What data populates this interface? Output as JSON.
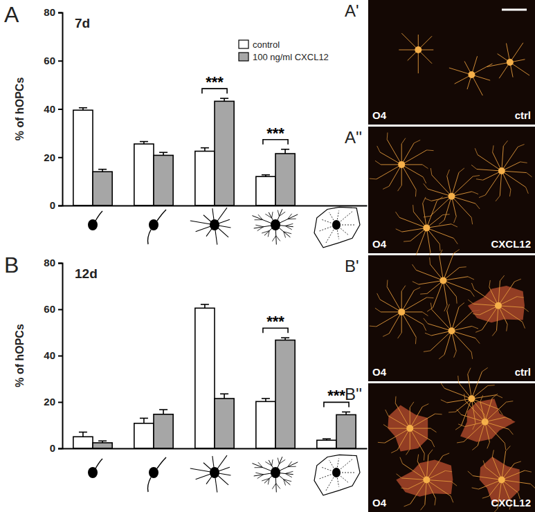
{
  "chart_data": [
    {
      "type": "bar",
      "panel": "A",
      "title": "7d",
      "y_label": "% of hOPCs",
      "categories": [
        null,
        null,
        null,
        null,
        null
      ],
      "series": [
        {
          "name": "control",
          "color": "#ffffff",
          "values": [
            39.5,
            25.5,
            22.5,
            12.0,
            null
          ],
          "errors": [
            1.0,
            1.0,
            1.4,
            0.7,
            null
          ]
        },
        {
          "name": "100 ng/ml CXCL12",
          "color": "#a6a6a6",
          "values": [
            14.0,
            20.8,
            43.2,
            21.5,
            null
          ],
          "errors": [
            1.0,
            1.2,
            1.2,
            1.8,
            null
          ]
        }
      ],
      "ylim": [
        0,
        80
      ],
      "yticks": [
        0,
        20,
        40,
        60,
        80
      ],
      "legend": "upper right",
      "annotations": [
        {
          "text": "***",
          "category": 2
        },
        {
          "text": "***",
          "category": 3
        }
      ]
    },
    {
      "type": "bar",
      "panel": "B",
      "title": "12d",
      "y_label": "% of hOPCs",
      "categories": [
        null,
        null,
        null,
        null,
        null
      ],
      "series": [
        {
          "color": "#ffffff",
          "values": [
            5.0,
            10.8,
            60.5,
            20.2,
            3.5
          ],
          "errors": [
            2.0,
            2.2,
            1.6,
            1.3,
            0.6
          ]
        },
        {
          "color": "#a6a6a6",
          "values": [
            2.4,
            14.7,
            21.5,
            46.7,
            14.5
          ],
          "errors": [
            0.8,
            2.0,
            2.0,
            1.0,
            1.2
          ]
        }
      ],
      "ylim": [
        0,
        80
      ],
      "yticks": [
        0,
        20,
        40,
        60,
        80
      ],
      "annotations": [
        {
          "text": "***",
          "category": 3
        },
        {
          "text": "***",
          "category": 4
        }
      ]
    }
  ],
  "images": [
    {
      "label": "A'",
      "stain": "O4",
      "condition": "ctrl"
    },
    {
      "label": "A''",
      "stain": "O4",
      "condition": "CXCL12"
    },
    {
      "label": "B'",
      "stain": "O4",
      "condition": "ctrl"
    },
    {
      "label": "B''",
      "stain": "O4",
      "condition": "CXCL12"
    }
  ]
}
